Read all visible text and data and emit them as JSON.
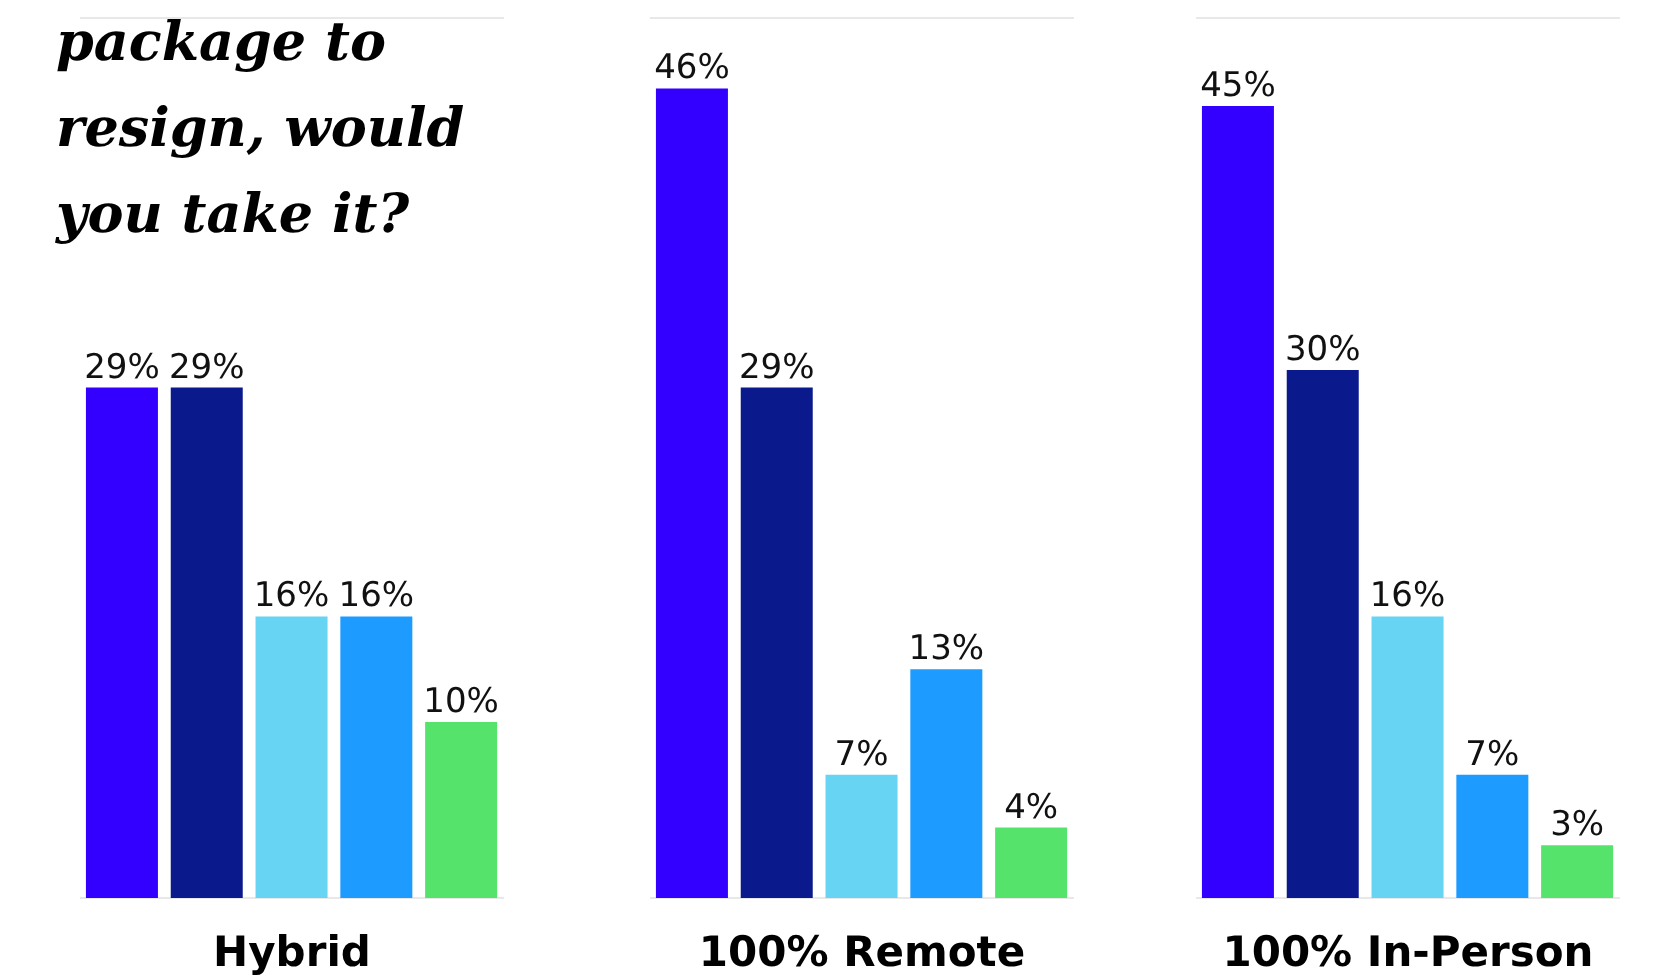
{
  "chart_data": [
    {
      "type": "bar",
      "title": "package to resign, would you take it?",
      "xlabel": "Hybrid",
      "categories": [
        null,
        null,
        null,
        null,
        null
      ],
      "values": [
        29,
        29,
        16,
        16,
        10
      ],
      "colors": [
        "#3300ff",
        "#0a1a8c",
        "#66d4f2",
        "#1e9bff",
        "#55e36b"
      ],
      "value_labels": [
        "29%",
        "29%",
        "16%",
        "16%",
        "10%"
      ],
      "ylim": [
        0,
        50
      ],
      "grid": "y"
    },
    {
      "type": "bar",
      "xlabel": "100% Remote",
      "categories": [
        null,
        null,
        null,
        null,
        null
      ],
      "values": [
        46,
        29,
        7,
        13,
        4
      ],
      "colors": [
        "#3300ff",
        "#0a1a8c",
        "#66d4f2",
        "#1e9bff",
        "#55e36b"
      ],
      "value_labels": [
        "46%",
        "29%",
        "7%",
        "13%",
        "4%"
      ],
      "ylim": [
        0,
        50
      ],
      "grid": "y"
    },
    {
      "type": "bar",
      "xlabel": "100% In-Person",
      "categories": [
        null,
        null,
        null,
        null,
        null
      ],
      "values": [
        45,
        30,
        16,
        7,
        3
      ],
      "colors": [
        "#3300ff",
        "#0a1a8c",
        "#66d4f2",
        "#1e9bff",
        "#55e36b"
      ],
      "value_labels": [
        "45%",
        "30%",
        "16%",
        "7%",
        "3%"
      ],
      "ylim": [
        0,
        50
      ],
      "grid": "y"
    }
  ]
}
